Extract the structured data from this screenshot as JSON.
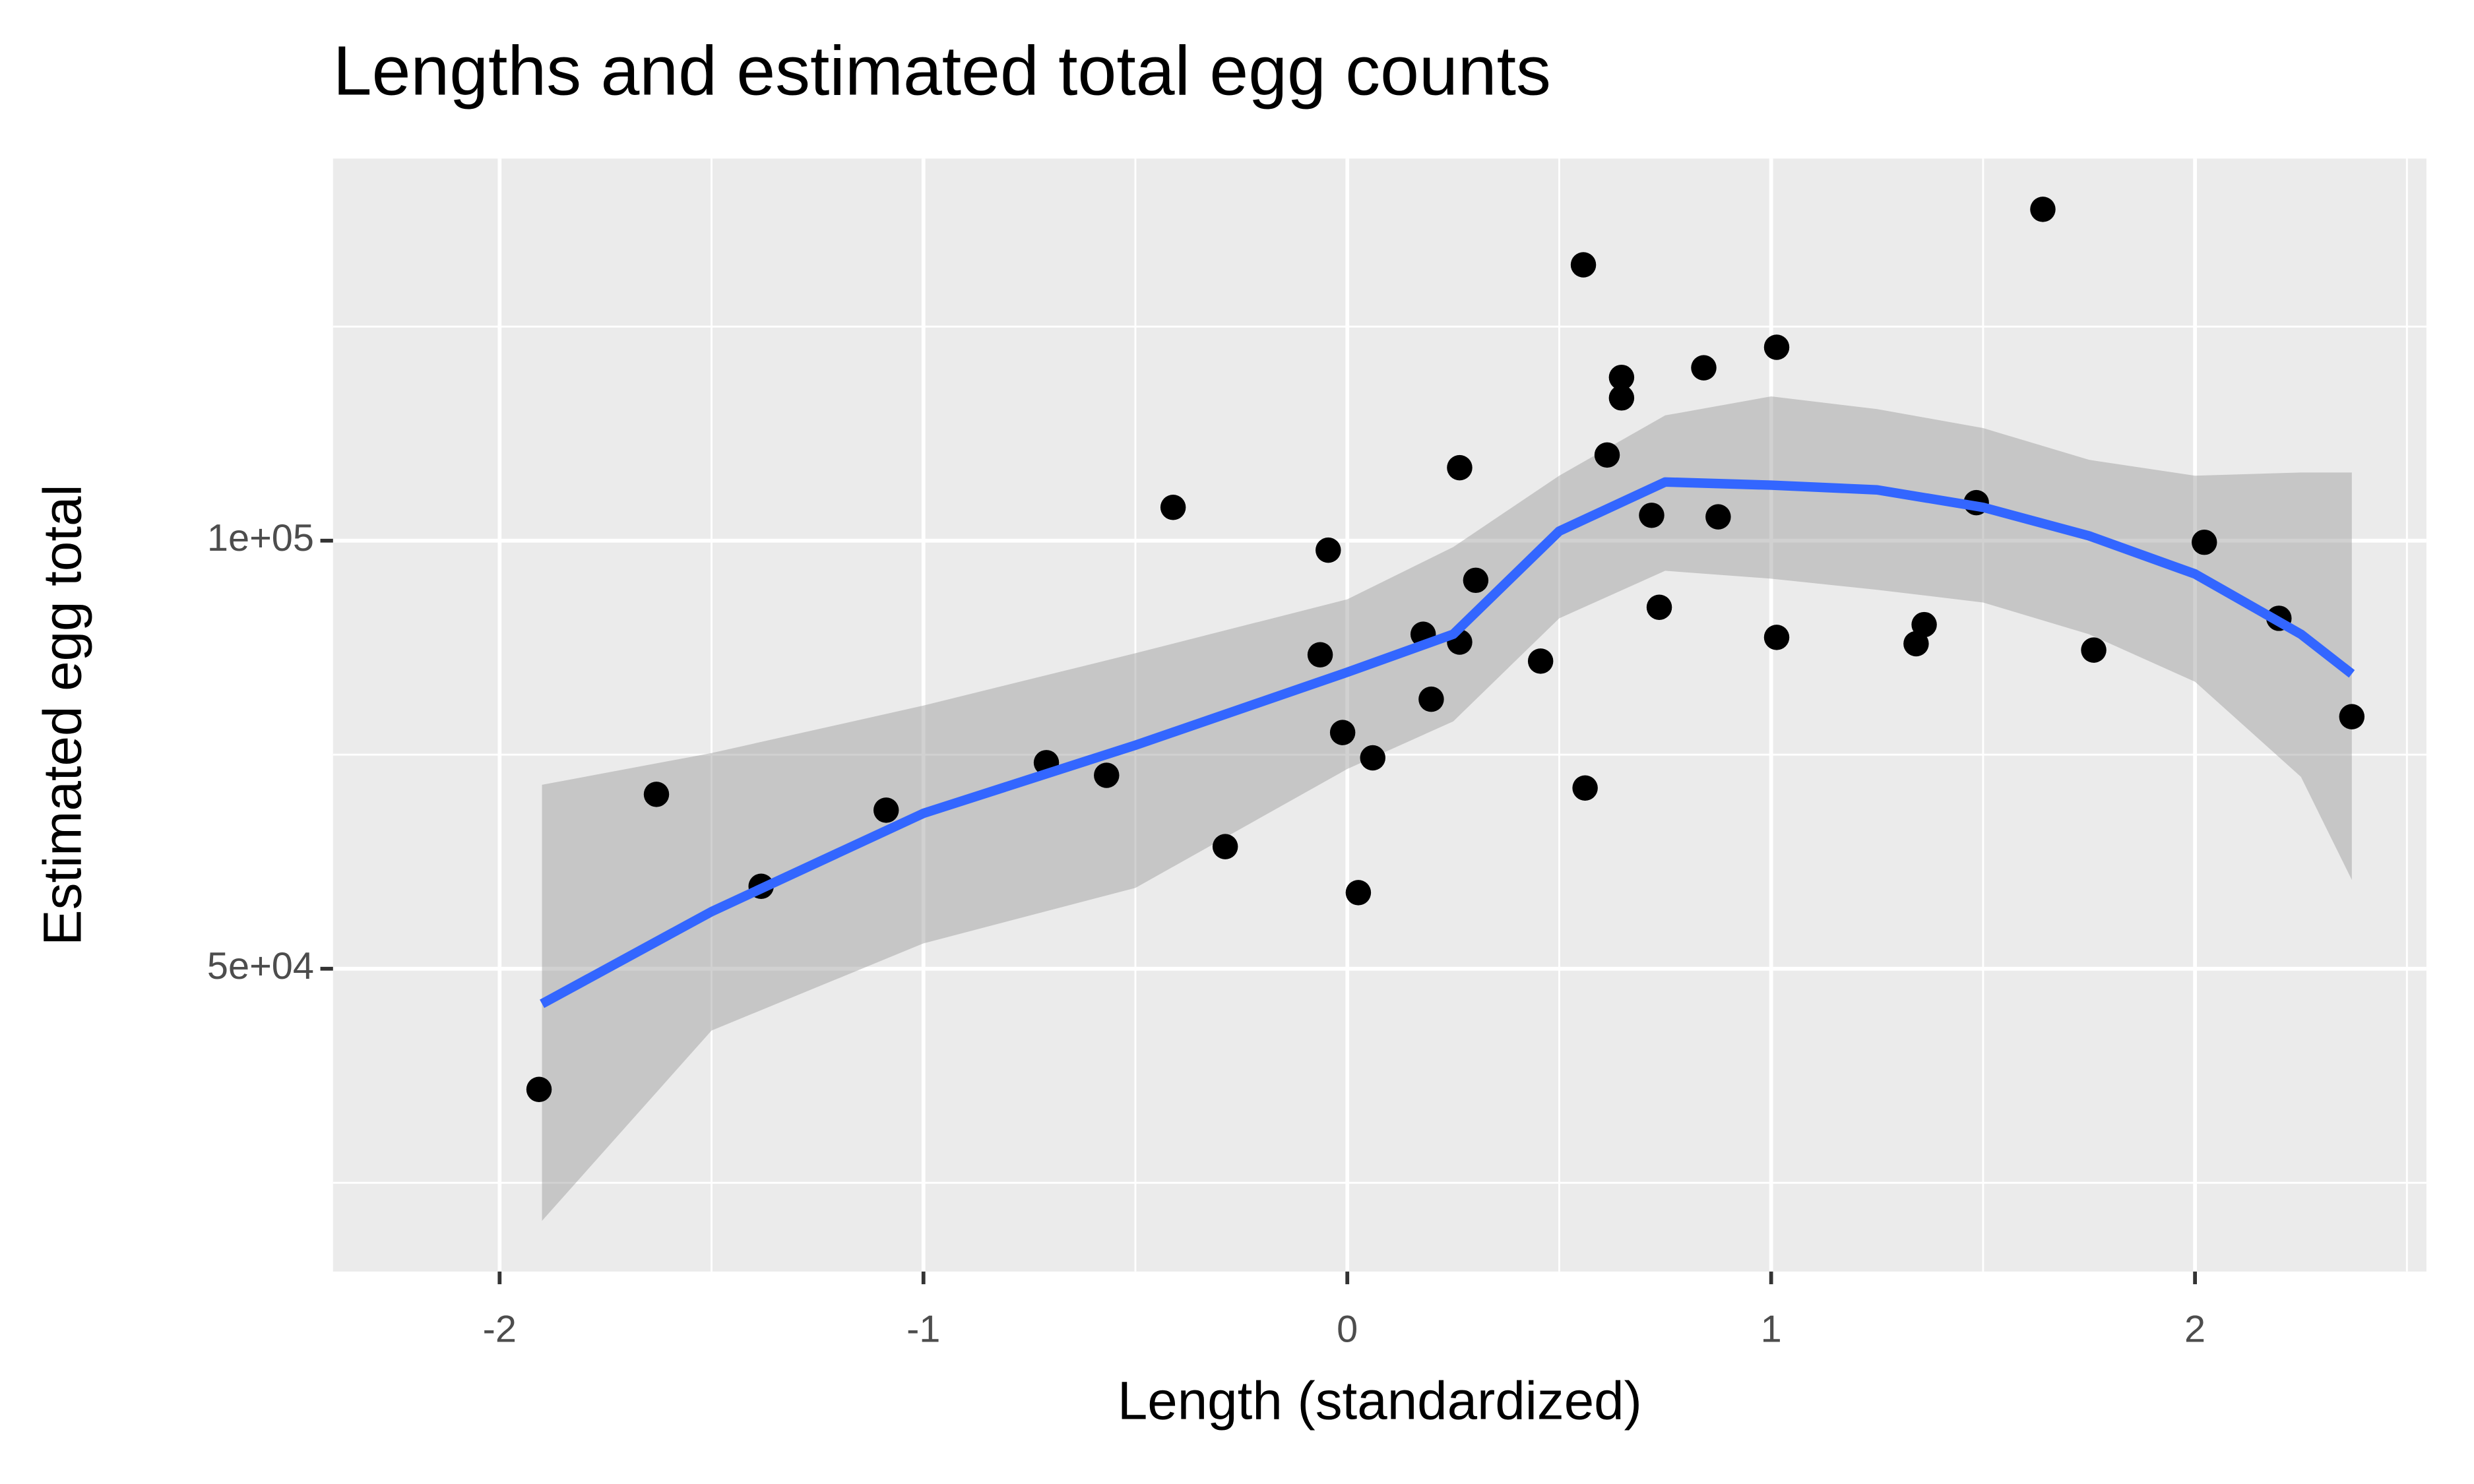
{
  "chart_data": {
    "type": "scatter",
    "title": "Lengths and estimated total egg counts",
    "x_label": "Length (standardized)",
    "y_label": "Estimated egg total",
    "x": [
      -1.907,
      -1.63,
      -1.383,
      -1.088,
      -0.71,
      -0.568,
      -0.411,
      -0.288,
      -0.064,
      -0.045,
      -0.011,
      0.026,
      0.06,
      0.179,
      0.198,
      0.265,
      0.265,
      0.303,
      0.456,
      0.557,
      0.561,
      0.613,
      0.647,
      0.647,
      0.718,
      0.736,
      0.841,
      0.875,
      1.013,
      1.013,
      1.342,
      1.361,
      1.484,
      1.641,
      1.761,
      2.022,
      2.198,
      2.37
    ],
    "y": [
      35900,
      70370,
      59630,
      68520,
      74070,
      72590,
      103890,
      64260,
      86670,
      98890,
      77590,
      58890,
      74630,
      89070,
      81480,
      108520,
      88150,
      95370,
      85930,
      132220,
      71110,
      110000,
      119070,
      116670,
      102960,
      92220,
      120190,
      102780,
      122590,
      88700,
      87960,
      90190,
      104440,
      138700,
      87220,
      99810,
      90930,
      79440
    ],
    "color": "#000000",
    "smooth": {
      "x": [
        -1.9,
        -1.5,
        -1.0,
        -0.5,
        0,
        0.25,
        0.5,
        0.75,
        1.0,
        1.25,
        1.5,
        1.75,
        2.0,
        2.25,
        2.37
      ],
      "y": [
        45900,
        56670,
        68150,
        76110,
        84630,
        89070,
        101110,
        106850,
        106480,
        105930,
        103890,
        100560,
        96110,
        89070,
        84440
      ],
      "ymin": [
        20550,
        42780,
        52960,
        59440,
        73330,
        78890,
        90930,
        96480,
        95560,
        94260,
        92780,
        89070,
        83520,
        72410,
        60370
      ],
      "ymax": [
        71480,
        75190,
        80740,
        86850,
        93150,
        99260,
        107590,
        114630,
        116850,
        115370,
        113150,
        109440,
        107590,
        107960,
        107960
      ],
      "color": "#3366ff",
      "fill": "#999999"
    },
    "xlim": [
      -2.393,
      2.546
    ],
    "ylim": [
      14630,
      144630
    ],
    "xticks": [
      -2,
      -1,
      0,
      1,
      2
    ],
    "yticks": [
      {
        "value": 50000,
        "label": "5e+04"
      },
      {
        "value": 100000,
        "label": "1e+05"
      }
    ],
    "xminor": [
      -1.5,
      -0.5,
      0.5,
      1.5,
      2.5
    ],
    "yminor": [
      25000,
      75000,
      125000
    ],
    "grid": true
  }
}
